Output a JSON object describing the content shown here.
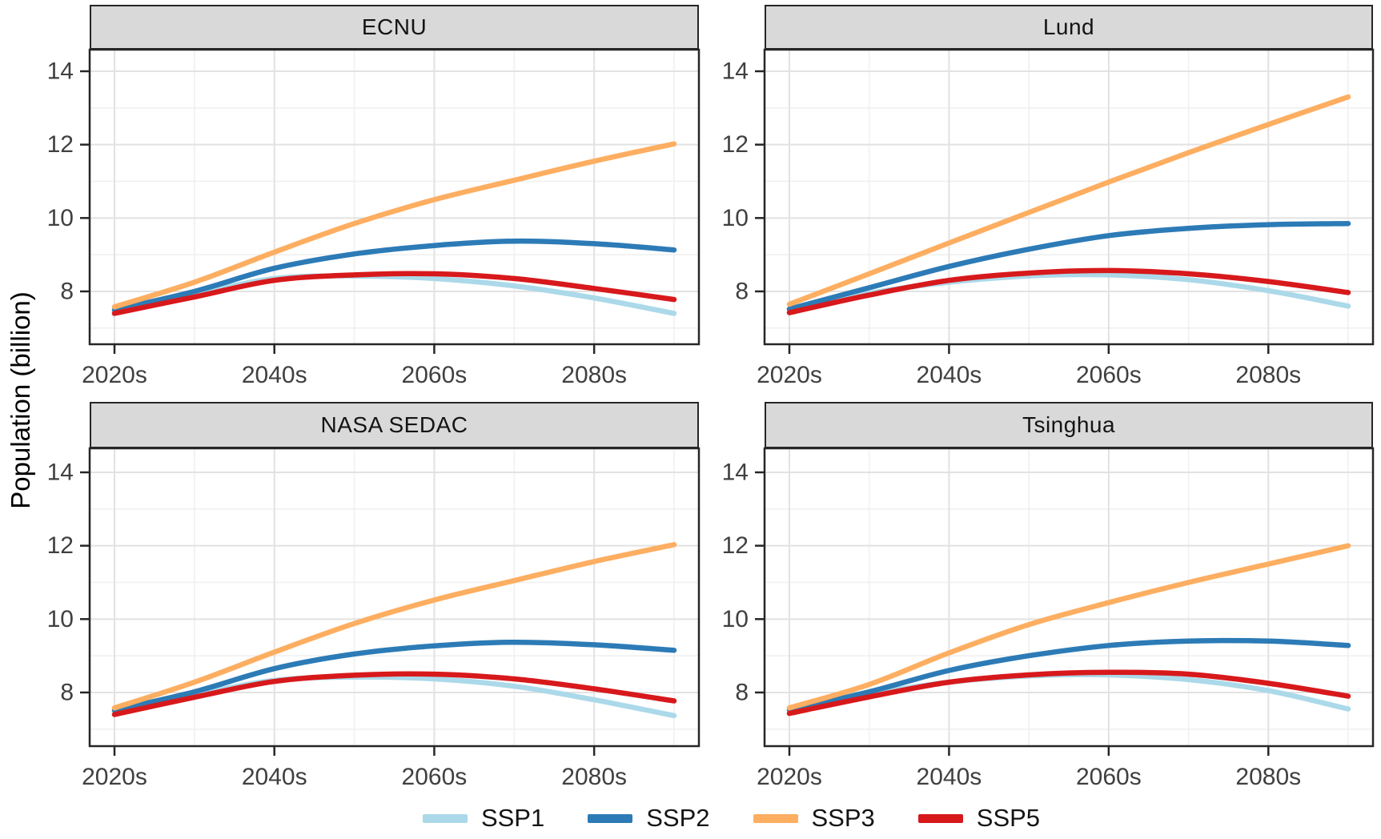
{
  "figure": {
    "y_axis_title": "Population (billion)",
    "x_tick_labels": [
      "2020s",
      "2040s",
      "2060s",
      "2080s"
    ],
    "y_tick_labels": [
      "8",
      "10",
      "12",
      "14"
    ],
    "colors": {
      "ssp1": "#ABD9E9",
      "ssp2": "#2C7BB6",
      "ssp3": "#FDAE61",
      "ssp5": "#D7191C",
      "strip_background": "#D9D9D9",
      "panel_border": "#262626",
      "grid_major": "#E2E2E2",
      "grid_minor": "#F0F0F0",
      "tick_text": "#404040"
    },
    "legend": {
      "items": [
        {
          "label": "SSP1",
          "color": "#ABD9E9"
        },
        {
          "label": "SSP2",
          "color": "#2C7BB6"
        },
        {
          "label": "SSP3",
          "color": "#FDAE61"
        },
        {
          "label": "SSP5",
          "color": "#D7191C"
        }
      ]
    }
  },
  "chart_data": [
    {
      "type": "line",
      "title": "ECNU",
      "xlabel": "",
      "ylabel": "Population (billion)",
      "x": [
        "2020s",
        "2030s",
        "2040s",
        "2050s",
        "2060s",
        "2070s",
        "2080s",
        "2090s"
      ],
      "x_major_ticks": [
        "2020s",
        "2040s",
        "2060s",
        "2080s"
      ],
      "y_major_ticks": [
        8,
        10,
        12,
        14
      ],
      "ylim": [
        6.5,
        14.6
      ],
      "grid": true,
      "legend_position": "bottom",
      "series": [
        {
          "name": "SSP1",
          "color": "#ABD9E9",
          "values": [
            7.45,
            7.92,
            8.35,
            8.42,
            8.35,
            8.15,
            7.82,
            7.4
          ]
        },
        {
          "name": "SSP2",
          "color": "#2C7BB6",
          "values": [
            7.5,
            8.0,
            8.63,
            9.02,
            9.25,
            9.37,
            9.3,
            9.13
          ]
        },
        {
          "name": "SSP3",
          "color": "#FDAE61",
          "values": [
            7.58,
            8.25,
            9.07,
            9.85,
            10.5,
            11.03,
            11.55,
            12.02
          ]
        },
        {
          "name": "SSP5",
          "color": "#D7191C",
          "values": [
            7.4,
            7.85,
            8.3,
            8.45,
            8.48,
            8.35,
            8.08,
            7.78
          ]
        }
      ]
    },
    {
      "type": "line",
      "title": "Lund",
      "xlabel": "",
      "ylabel": "Population (billion)",
      "x": [
        "2020s",
        "2030s",
        "2040s",
        "2050s",
        "2060s",
        "2070s",
        "2080s",
        "2090s"
      ],
      "x_major_ticks": [
        "2020s",
        "2040s",
        "2060s",
        "2080s"
      ],
      "y_major_ticks": [
        8,
        10,
        12,
        14
      ],
      "ylim": [
        6.5,
        14.6
      ],
      "grid": true,
      "legend_position": "bottom",
      "series": [
        {
          "name": "SSP1",
          "color": "#ABD9E9",
          "values": [
            7.5,
            7.95,
            8.25,
            8.42,
            8.45,
            8.32,
            8.02,
            7.6
          ]
        },
        {
          "name": "SSP2",
          "color": "#2C7BB6",
          "values": [
            7.52,
            8.1,
            8.68,
            9.15,
            9.52,
            9.72,
            9.82,
            9.85
          ]
        },
        {
          "name": "SSP3",
          "color": "#FDAE61",
          "values": [
            7.65,
            8.48,
            9.32,
            10.15,
            10.98,
            11.78,
            12.55,
            13.3
          ]
        },
        {
          "name": "SSP5",
          "color": "#D7191C",
          "values": [
            7.42,
            7.9,
            8.3,
            8.5,
            8.57,
            8.48,
            8.27,
            7.97
          ]
        }
      ]
    },
    {
      "type": "line",
      "title": "NASA SEDAC",
      "xlabel": "",
      "ylabel": "Population (billion)",
      "x": [
        "2020s",
        "2030s",
        "2040s",
        "2050s",
        "2060s",
        "2070s",
        "2080s",
        "2090s"
      ],
      "x_major_ticks": [
        "2020s",
        "2040s",
        "2060s",
        "2080s"
      ],
      "y_major_ticks": [
        8,
        10,
        12,
        14
      ],
      "ylim": [
        6.5,
        14.6
      ],
      "grid": true,
      "legend_position": "bottom",
      "series": [
        {
          "name": "SSP1",
          "color": "#ABD9E9",
          "values": [
            7.48,
            7.93,
            8.33,
            8.42,
            8.37,
            8.17,
            7.8,
            7.37
          ]
        },
        {
          "name": "SSP2",
          "color": "#2C7BB6",
          "values": [
            7.52,
            8.02,
            8.65,
            9.05,
            9.27,
            9.37,
            9.3,
            9.15
          ]
        },
        {
          "name": "SSP3",
          "color": "#FDAE61",
          "values": [
            7.58,
            8.28,
            9.1,
            9.88,
            10.52,
            11.05,
            11.57,
            12.03
          ]
        },
        {
          "name": "SSP5",
          "color": "#D7191C",
          "values": [
            7.4,
            7.87,
            8.3,
            8.47,
            8.5,
            8.37,
            8.1,
            7.77
          ]
        }
      ]
    },
    {
      "type": "line",
      "title": "Tsinghua",
      "xlabel": "",
      "ylabel": "Population (billion)",
      "x": [
        "2020s",
        "2030s",
        "2040s",
        "2050s",
        "2060s",
        "2070s",
        "2080s",
        "2090s"
      ],
      "x_major_ticks": [
        "2020s",
        "2040s",
        "2060s",
        "2080s"
      ],
      "y_major_ticks": [
        8,
        10,
        12,
        14
      ],
      "ylim": [
        6.5,
        14.6
      ],
      "grid": true,
      "legend_position": "bottom",
      "series": [
        {
          "name": "SSP1",
          "color": "#ABD9E9",
          "values": [
            7.5,
            7.95,
            8.28,
            8.45,
            8.48,
            8.35,
            8.05,
            7.55
          ]
        },
        {
          "name": "SSP2",
          "color": "#2C7BB6",
          "values": [
            7.53,
            8.02,
            8.6,
            9.0,
            9.28,
            9.4,
            9.4,
            9.28
          ]
        },
        {
          "name": "SSP3",
          "color": "#FDAE61",
          "values": [
            7.58,
            8.22,
            9.08,
            9.85,
            10.45,
            11.0,
            11.5,
            12.0
          ]
        },
        {
          "name": "SSP5",
          "color": "#D7191C",
          "values": [
            7.43,
            7.88,
            8.28,
            8.48,
            8.55,
            8.5,
            8.25,
            7.9
          ]
        }
      ]
    }
  ]
}
